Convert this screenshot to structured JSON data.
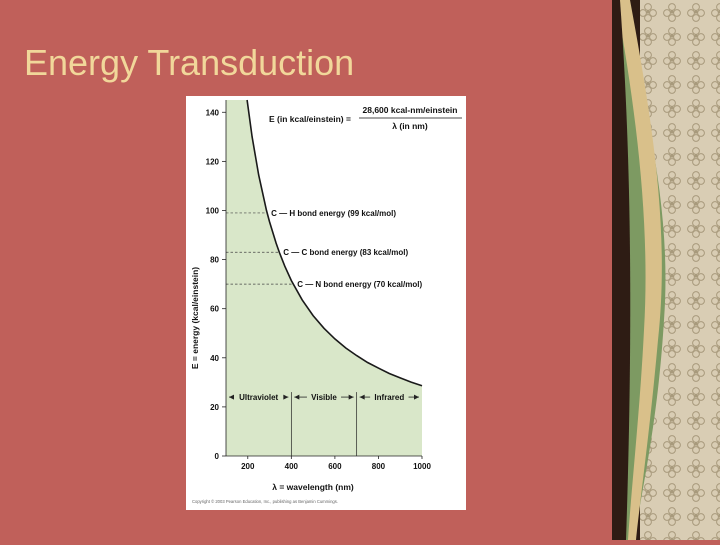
{
  "slide": {
    "title": "Energy Transduction"
  },
  "colors": {
    "background": "#c0605a",
    "title": "#f1d79a",
    "frame": "#2e1c14",
    "ribbon_green": "#7d9a62",
    "ribbon_tan": "#d9c08a",
    "chart_fill": "#d9e7c9",
    "curve": "#1a1a1a"
  },
  "chart_data": {
    "type": "line",
    "xlabel": "λ = wavelength (nm)",
    "ylabel": "E = energy (kcal/einstein)",
    "xlim": [
      100,
      1000
    ],
    "ylim": [
      0,
      145
    ],
    "x_ticks": [
      200,
      400,
      600,
      800,
      1000
    ],
    "y_ticks": [
      0,
      20,
      40,
      60,
      80,
      100,
      120,
      140
    ],
    "formula": {
      "lhs": "E (in kcal/einstein) =",
      "numerator": "28,600 kcal-nm/einstein",
      "denominator": "λ (in nm)"
    },
    "series": [
      {
        "x": [
          197,
          220,
          250,
          286,
          300,
          330,
          345,
          370,
          400,
          450,
          500,
          550,
          600,
          650,
          700,
          750,
          800,
          850,
          900,
          950,
          1000
        ],
        "y": [
          145,
          130,
          114.4,
          100,
          95.3,
          86.7,
          82.9,
          77.3,
          71.5,
          63.6,
          57.2,
          52,
          47.7,
          44,
          40.9,
          38.1,
          35.8,
          33.6,
          31.8,
          30.1,
          28.6
        ]
      }
    ],
    "reference_lines": [
      {
        "y": 99,
        "label": "C — H bond energy (99 kcal/mol)"
      },
      {
        "y": 83,
        "label": "C — C bond energy (83 kcal/mol)"
      },
      {
        "y": 70,
        "label": "C — N bond energy (70 kcal/mol)"
      }
    ],
    "regions": [
      {
        "label": "Ultraviolet",
        "from": 100,
        "to": 400
      },
      {
        "label": "Visible",
        "from": 400,
        "to": 700
      },
      {
        "label": "Infrared",
        "from": 700,
        "to": 1000
      }
    ],
    "copyright": "Copyright © 2003 Pearson Education, Inc., publishing as Benjamin Cummings."
  }
}
